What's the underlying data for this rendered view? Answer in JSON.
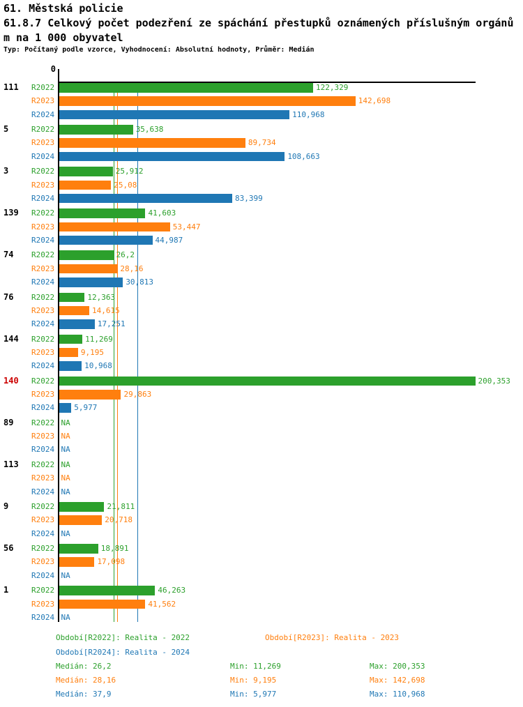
{
  "header": {
    "title": "61. Městská policie",
    "subtitle_line1": "61.8.7 Celkový počet podezření ze spáchání přestupků oznámených příslušným orgánů",
    "subtitle_line2": "m na 1 000 obyvatel",
    "meta": "Typ: Počítaný podle vzorce, Vyhodnocení: Absolutní hodnoty, Průměr: Medián"
  },
  "colors": {
    "series_r2022": "#2ca02c",
    "series_r2023": "#ff7f0e",
    "series_r2024": "#1f77b4",
    "group_label": "#000000",
    "group_label_highlight": "#cc0000",
    "axis": "#000000"
  },
  "chart_data": {
    "type": "bar",
    "orientation": "horizontal",
    "title": "61.8.7 Celkový počet podezření ze spáchání přestupků oznámených příslušným orgánům na 1 000 obyvatel",
    "value_axis": {
      "min": 0,
      "max": 200.353,
      "zero_label": "0",
      "grid": false
    },
    "series": [
      "R2022",
      "R2023",
      "R2024"
    ],
    "series_colors": [
      "#2ca02c",
      "#ff7f0e",
      "#1f77b4"
    ],
    "median_lines": [
      26.2,
      28.16,
      37.9
    ],
    "groups": [
      {
        "label": "111",
        "highlight": false,
        "values": [
          122.329,
          142.698,
          110.968
        ],
        "value_labels": [
          "122,329",
          "142,698",
          "110,968"
        ]
      },
      {
        "label": "5",
        "highlight": false,
        "values": [
          35.638,
          89.734,
          108.663
        ],
        "value_labels": [
          "35,638",
          "89,734",
          "108,663"
        ]
      },
      {
        "label": "3",
        "highlight": false,
        "values": [
          25.912,
          25.08,
          83.399
        ],
        "value_labels": [
          "25,912",
          "25,08",
          "83,399"
        ]
      },
      {
        "label": "139",
        "highlight": false,
        "values": [
          41.603,
          53.447,
          44.987
        ],
        "value_labels": [
          "41,603",
          "53,447",
          "44,987"
        ]
      },
      {
        "label": "74",
        "highlight": false,
        "values": [
          26.2,
          28.16,
          30.813
        ],
        "value_labels": [
          "26,2",
          "28,16",
          "30,813"
        ]
      },
      {
        "label": "76",
        "highlight": false,
        "values": [
          12.363,
          14.615,
          17.251
        ],
        "value_labels": [
          "12,363",
          "14,615",
          "17,251"
        ]
      },
      {
        "label": "144",
        "highlight": false,
        "values": [
          11.269,
          9.195,
          10.968
        ],
        "value_labels": [
          "11,269",
          "9,195",
          "10,968"
        ]
      },
      {
        "label": "140",
        "highlight": true,
        "values": [
          200.353,
          29.863,
          5.977
        ],
        "value_labels": [
          "200,353",
          "29,863",
          "5,977"
        ]
      },
      {
        "label": "89",
        "highlight": false,
        "values": [
          null,
          null,
          null
        ],
        "value_labels": [
          "NA",
          "NA",
          "NA"
        ]
      },
      {
        "label": "113",
        "highlight": false,
        "values": [
          null,
          null,
          null
        ],
        "value_labels": [
          "NA",
          "NA",
          "NA"
        ]
      },
      {
        "label": "9",
        "highlight": false,
        "values": [
          21.811,
          20.718,
          null
        ],
        "value_labels": [
          "21,811",
          "20,718",
          "NA"
        ]
      },
      {
        "label": "56",
        "highlight": false,
        "values": [
          18.891,
          17.098,
          null
        ],
        "value_labels": [
          "18,891",
          "17,098",
          "NA"
        ]
      },
      {
        "label": "1",
        "highlight": false,
        "values": [
          46.263,
          41.562,
          null
        ],
        "value_labels": [
          "46,263",
          "41,562",
          "NA"
        ]
      }
    ],
    "legend": {
      "r2022": "Období[R2022]: Realita - 2022",
      "r2023": "Období[R2023]: Realita - 2023",
      "r2024": "Období[R2024]: Realita - 2024"
    },
    "stats": {
      "r2022": {
        "median": "Medián: 26,2",
        "min": "Min: 11,269",
        "max": "Max: 200,353"
      },
      "r2023": {
        "median": "Medián: 28,16",
        "min": "Min: 9,195",
        "max": "Max: 142,698"
      },
      "r2024": {
        "median": "Medián: 37,9",
        "min": "Min: 5,977",
        "max": "Max: 110,968"
      }
    }
  }
}
